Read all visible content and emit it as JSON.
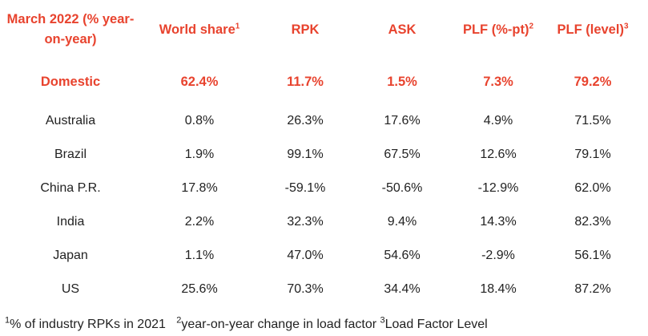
{
  "header": {
    "period": "March 2022 (% year-on-year)",
    "world_share": "World share",
    "world_share_sup": "1",
    "rpk": "RPK",
    "ask": "ASK",
    "plf_pt": "PLF (%-pt)",
    "plf_pt_sup": "2",
    "plf_level": "PLF (level)",
    "plf_level_sup": "3"
  },
  "domestic": {
    "label": "Domestic",
    "world_share": "62.4%",
    "rpk": "11.7%",
    "ask": "1.5%",
    "plf_pt": "7.3%",
    "plf_level": "79.2%"
  },
  "rows": [
    {
      "label": "Australia",
      "world_share": "0.8%",
      "rpk": "26.3%",
      "ask": "17.6%",
      "plf_pt": "4.9%",
      "plf_level": "71.5%"
    },
    {
      "label": "Brazil",
      "world_share": "1.9%",
      "rpk": "99.1%",
      "ask": "67.5%",
      "plf_pt": "12.6%",
      "plf_level": "79.1%"
    },
    {
      "label": "China P.R.",
      "world_share": "17.8%",
      "rpk": "-59.1%",
      "ask": "-50.6%",
      "plf_pt": "-12.9%",
      "plf_level": "62.0%"
    },
    {
      "label": "India",
      "world_share": "2.2%",
      "rpk": "32.3%",
      "ask": "9.4%",
      "plf_pt": "14.3%",
      "plf_level": "82.3%"
    },
    {
      "label": "Japan",
      "world_share": "1.1%",
      "rpk": "47.0%",
      "ask": "54.6%",
      "plf_pt": "-2.9%",
      "plf_level": "56.1%"
    },
    {
      "label": "US",
      "world_share": "25.6%",
      "rpk": "70.3%",
      "ask": "34.4%",
      "plf_pt": "18.4%",
      "plf_level": "87.2%"
    }
  ],
  "footnotes": {
    "n1_sup": "1",
    "n1_text": "% of industry RPKs in 2021",
    "n2_sup": "2",
    "n2_text": "year-on-year change in load factor ",
    "n3_sup": "3",
    "n3_text": "Load Factor Level"
  },
  "colors": {
    "accent": "#e8432e",
    "text": "#222222"
  }
}
